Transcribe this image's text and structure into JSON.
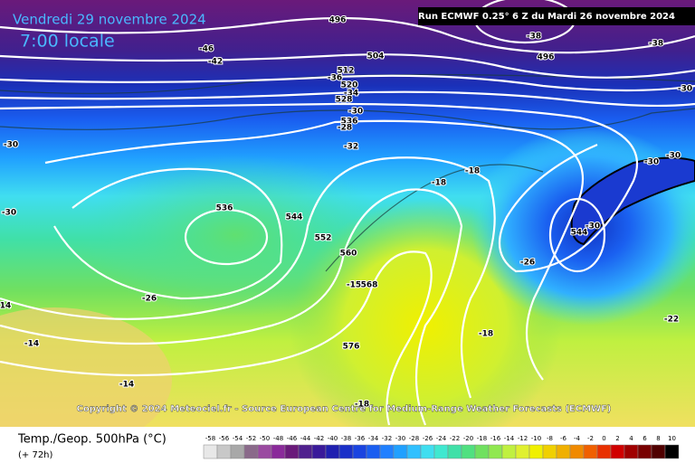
{
  "header": {
    "date": "Vendredi 29 novembre 2024",
    "time": "7:00 locale",
    "run": "Run ECMWF 0.25° 6 Z du Mardi 26 novembre 2024"
  },
  "footer": {
    "copyright": "Copyright © 2024 Meteociel.fr - Source European Centre for Medium-Range Weather Forecasts (ECMWF)"
  },
  "legend": {
    "title": "Temp./Geop. 500hPa (°C)",
    "lead": "(+ 72h)",
    "ticks": [
      -58,
      -56,
      -54,
      -52,
      -50,
      -48,
      -46,
      -44,
      -42,
      -40,
      -38,
      -36,
      -34,
      -32,
      -30,
      -28,
      -26,
      -24,
      -22,
      -20,
      -18,
      -16,
      -14,
      -12,
      -10,
      -8,
      -6,
      -4,
      -2,
      0,
      2,
      4,
      6,
      8,
      10
    ],
    "colors": [
      "#e8e8e8",
      "#c8c8c8",
      "#a8a8a8",
      "#8a6a8a",
      "#9a4aa0",
      "#8a2a9a",
      "#6a1a7a",
      "#50208e",
      "#3a1a9a",
      "#2020b0",
      "#1a30c8",
      "#1a44e0",
      "#1a5ef0",
      "#2080ff",
      "#20a0ff",
      "#30c0ff",
      "#40def0",
      "#40e8d0",
      "#40e0a8",
      "#50e080",
      "#70e060",
      "#90e850",
      "#c0f040",
      "#e0f030",
      "#f0f000",
      "#f0d000",
      "#f0b000",
      "#f08a00",
      "#f06000",
      "#e83000",
      "#d00000",
      "#a00000",
      "#780000",
      "#500000",
      "#000000"
    ]
  },
  "contour_labels": [
    "496",
    "-38",
    "-38",
    "496",
    "-46",
    "-42",
    "504",
    "512",
    "-36",
    "520",
    "-34",
    "528",
    "-30",
    "536",
    "-28",
    "-30",
    "-30",
    "-32",
    "-30",
    "-30",
    "-18",
    "-18",
    "536",
    "544",
    "-30",
    "552",
    "544",
    "-30",
    "560",
    "-26",
    "-15",
    "568",
    "-26",
    "-22",
    "14",
    "-14",
    "576",
    "-18",
    "-14",
    "-18"
  ]
}
